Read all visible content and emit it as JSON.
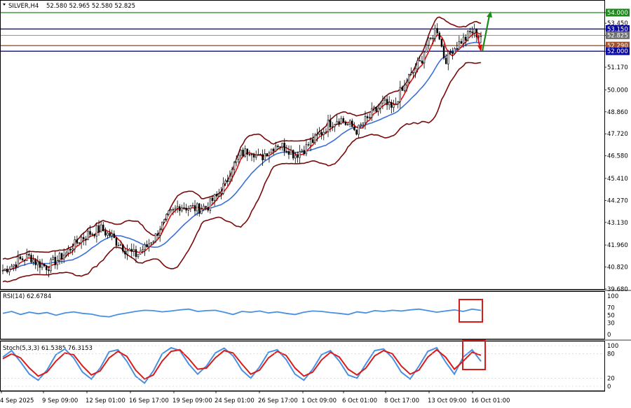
{
  "header": {
    "symbol": "SILVER,H4",
    "ohlc": "52.580 52.965 52.580 52.825"
  },
  "panels": {
    "rsi_label": "RSI(14) 62.6784",
    "stoch_label": "Stoch(5,3,3) 61.5385 76.3153"
  },
  "colors": {
    "candle": "#000000",
    "bb_band": "#7a0a0a",
    "ma_fast": "#e01010",
    "ma_slow": "#3a6fd8",
    "rsi": "#4a90e2",
    "stoch_k": "#4a90e2",
    "stoch_d": "#d81b1b",
    "level_green": "#1a8a1a",
    "level_blue": "#0a0aa0",
    "level_brown": "#a0522d",
    "level_price": "#707070",
    "highlight_box": "#d81b1b",
    "arrow_up": "#1a8a1a",
    "arrow_down": "#e01010"
  },
  "chart_data": [
    {
      "type": "candlestick",
      "symbol": "SILVER",
      "timeframe": "H4",
      "ylim": [
        39.68,
        54.58
      ],
      "y_ticks": [
        "54.000",
        "53.450",
        "53.150",
        "52.825",
        "52.290",
        "52.000",
        "51.170",
        "50.000",
        "48.860",
        "47.720",
        "46.580",
        "45.410",
        "44.270",
        "43.130",
        "41.960",
        "40.820",
        "39.680"
      ],
      "x_ticks": [
        "4 Sep 2025",
        "9 Sep 09:00",
        "12 Sep 01:00",
        "16 Sep 17:00",
        "19 Sep 09:00",
        "24 Sep 01:00",
        "26 Sep 17:00",
        "1 Oct 09:00",
        "6 Oct 01:00",
        "8 Oct 17:00",
        "13 Oct 09:00",
        "16 Oct 01:00"
      ],
      "levels": [
        {
          "value": 54.0,
          "label": "54.000",
          "color_key": "level_green"
        },
        {
          "value": 53.15,
          "label": "53.150",
          "color_key": "level_blue"
        },
        {
          "value": 52.825,
          "label": "52.825",
          "color_key": "level_price"
        },
        {
          "value": 52.29,
          "label": "52.290",
          "color_key": "level_brown"
        },
        {
          "value": 52.0,
          "label": "52.000",
          "color_key": "level_blue"
        }
      ],
      "closes": [
        40.65,
        40.9,
        41.2,
        41.35,
        41.0,
        40.85,
        41.15,
        41.5,
        41.95,
        42.35,
        42.6,
        42.8,
        42.5,
        42.1,
        41.7,
        41.45,
        41.8,
        42.3,
        43.0,
        43.6,
        44.0,
        43.9,
        43.85,
        43.95,
        44.4,
        45.0,
        46.1,
        46.7,
        46.9,
        46.45,
        46.85,
        47.2,
        47.0,
        46.65,
        46.95,
        47.35,
        47.8,
        48.3,
        48.5,
        48.2,
        47.9,
        48.4,
        48.9,
        49.3,
        49.0,
        49.9,
        50.7,
        51.35,
        52.4,
        53.15,
        51.6,
        52.2,
        52.6,
        53.0,
        52.825
      ],
      "bollinger_period_hint": 20
    },
    {
      "type": "line",
      "name": "RSI(14)",
      "last_value": 62.6784,
      "ylim": [
        0,
        100
      ],
      "y_ticks": [
        "100",
        "70",
        "50",
        "30",
        "0"
      ],
      "values": [
        55,
        60,
        52,
        58,
        54,
        57,
        50,
        56,
        59,
        55,
        53,
        48,
        46,
        52,
        56,
        60,
        63,
        62,
        59,
        61,
        64,
        66,
        60,
        62,
        63,
        58,
        52,
        60,
        58,
        61,
        56,
        59,
        55,
        52,
        58,
        61,
        60,
        57,
        55,
        52,
        59,
        56,
        62,
        60,
        63,
        61,
        64,
        66,
        62,
        58,
        61,
        64,
        60,
        66,
        62.68
      ]
    },
    {
      "type": "line",
      "name": "Stoch(5,3,3)",
      "k_last": 61.5385,
      "d_last": 76.3153,
      "ylim": [
        0,
        100
      ],
      "y_ticks": [
        "100",
        "80",
        "20",
        "0"
      ],
      "k_values": [
        72,
        88,
        60,
        30,
        15,
        40,
        78,
        92,
        70,
        35,
        18,
        45,
        85,
        90,
        62,
        25,
        8,
        38,
        80,
        95,
        88,
        55,
        30,
        50,
        82,
        94,
        75,
        40,
        20,
        48,
        84,
        90,
        66,
        30,
        15,
        42,
        78,
        88,
        62,
        28,
        20,
        55,
        88,
        92,
        70,
        35,
        18,
        50,
        86,
        95,
        60,
        30,
        72,
        90,
        61.5385
      ],
      "d_values": [
        68,
        80,
        70,
        45,
        25,
        35,
        62,
        82,
        78,
        50,
        28,
        38,
        70,
        86,
        74,
        40,
        18,
        28,
        62,
        86,
        90,
        68,
        42,
        45,
        70,
        88,
        82,
        55,
        30,
        40,
        70,
        86,
        76,
        45,
        25,
        35,
        65,
        84,
        72,
        42,
        28,
        45,
        75,
        88,
        80,
        50,
        30,
        40,
        72,
        90,
        72,
        42,
        62,
        84,
        76.3153
      ]
    }
  ]
}
